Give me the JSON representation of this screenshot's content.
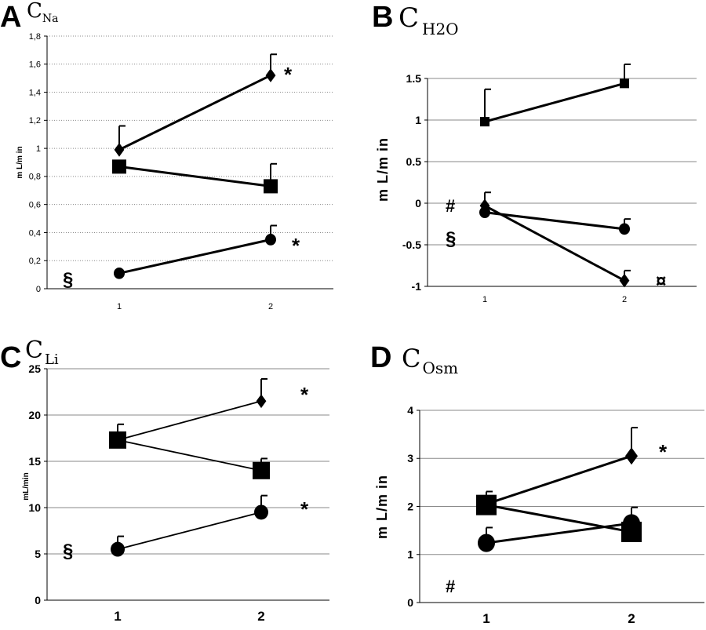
{
  "chart_data": [
    {
      "panel": "A",
      "type": "line",
      "title_main": "C",
      "title_sub": "Na",
      "ylabel": "m L/m in",
      "ylim": [
        0,
        1.8
      ],
      "yticks": [
        "0",
        "0,2",
        "0,4",
        "0,6",
        "0,8",
        "1",
        "1,2",
        "1,4",
        "1,6",
        "1,8"
      ],
      "x": [
        "1",
        "2"
      ],
      "series": [
        {
          "marker": "diamond",
          "values": [
            0.99,
            1.52
          ],
          "errors": [
            0.17,
            0.15
          ],
          "annotation": "*"
        },
        {
          "marker": "square",
          "values": [
            0.87,
            0.73
          ],
          "errors": [
            0.0,
            0.16
          ],
          "annotation": ""
        },
        {
          "marker": "circle",
          "values": [
            0.11,
            0.35
          ],
          "errors": [
            0.0,
            0.1
          ],
          "annotation": "*"
        }
      ],
      "side_note": "§"
    },
    {
      "panel": "B",
      "type": "line",
      "title_main": "C",
      "title_sub": "H2O",
      "ylabel": "m L/m in",
      "ylim": [
        -1,
        1.5
      ],
      "yticks": [
        "-1",
        "-0.5",
        "0",
        "0.5",
        "1",
        "1.5"
      ],
      "x": [
        "1",
        "2"
      ],
      "series": [
        {
          "marker": "square",
          "values": [
            0.98,
            1.44
          ],
          "errors": [
            0.39,
            0.23
          ],
          "annotation": ""
        },
        {
          "marker": "circle",
          "values": [
            -0.11,
            -0.31
          ],
          "errors": [
            0.0,
            0.12
          ],
          "annotation": ""
        },
        {
          "marker": "diamond",
          "values": [
            -0.03,
            -0.93
          ],
          "errors": [
            0.16,
            0.12
          ],
          "annotation": "¤"
        }
      ],
      "side_notes": [
        "#",
        "§"
      ]
    },
    {
      "panel": "C",
      "type": "line",
      "title_main": "C",
      "title_sub": "Li",
      "ylabel": "mL/min",
      "ylim": [
        0,
        25
      ],
      "yticks": [
        "0",
        "5",
        "10",
        "15",
        "20",
        "25"
      ],
      "x": [
        "1",
        "2"
      ],
      "series": [
        {
          "marker": "diamond",
          "values": [
            17.3,
            21.5
          ],
          "errors": [
            0.0,
            2.4
          ],
          "annotation": "*"
        },
        {
          "marker": "square",
          "values": [
            17.3,
            14.0
          ],
          "errors": [
            1.7,
            1.3
          ],
          "annotation": ""
        },
        {
          "marker": "circle",
          "values": [
            5.5,
            9.5
          ],
          "errors": [
            1.4,
            1.8
          ],
          "annotation": "*"
        }
      ],
      "side_note": "§"
    },
    {
      "panel": "D",
      "type": "line",
      "title_main": "C",
      "title_sub": "Osm",
      "ylabel": "m L/m in",
      "ylim": [
        0,
        4
      ],
      "yticks": [
        "0",
        "1",
        "2",
        "3",
        "4"
      ],
      "x": [
        "1",
        "2"
      ],
      "series": [
        {
          "marker": "diamond",
          "values": [
            2.05,
            3.05
          ],
          "errors": [
            0.0,
            0.59
          ],
          "annotation": "*"
        },
        {
          "marker": "square",
          "values": [
            2.03,
            1.47
          ],
          "errors": [
            0.28,
            0.0
          ],
          "annotation": ""
        },
        {
          "marker": "circle",
          "values": [
            1.24,
            1.65
          ],
          "errors": [
            0.32,
            0.33
          ],
          "annotation": ""
        }
      ],
      "side_note": "#"
    }
  ]
}
